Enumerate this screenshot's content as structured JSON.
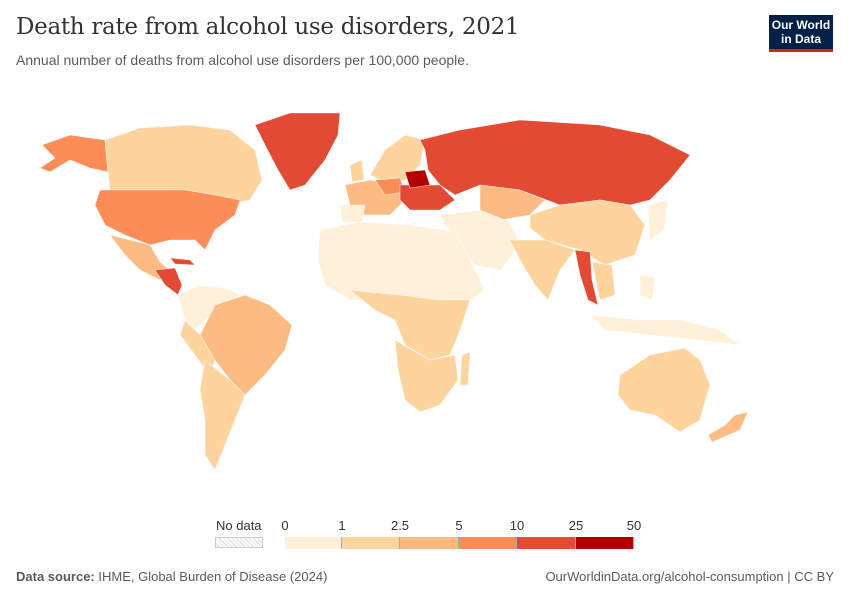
{
  "header": {
    "title": "Death rate from alcohol use disorders, 2021",
    "subtitle": "Annual number of deaths from alcohol use disorders per 100,000 people.",
    "logo": "Our World in Data"
  },
  "legend": {
    "no_data": "No data",
    "ticks": [
      "0",
      "1",
      "2.5",
      "5",
      "10",
      "25",
      "50"
    ],
    "colors": [
      "#fef0d9",
      "#fdd49e",
      "#fdbb84",
      "#fc8d59",
      "#e34a33",
      "#b30000"
    ],
    "no_data_color": "#e0e0e0"
  },
  "footer": {
    "source_label": "Data source:",
    "source": "IHME, Global Burden of Disease (2024)",
    "link": "OurWorldinData.org/alcohol-consumption",
    "license": "CC BY"
  }
}
